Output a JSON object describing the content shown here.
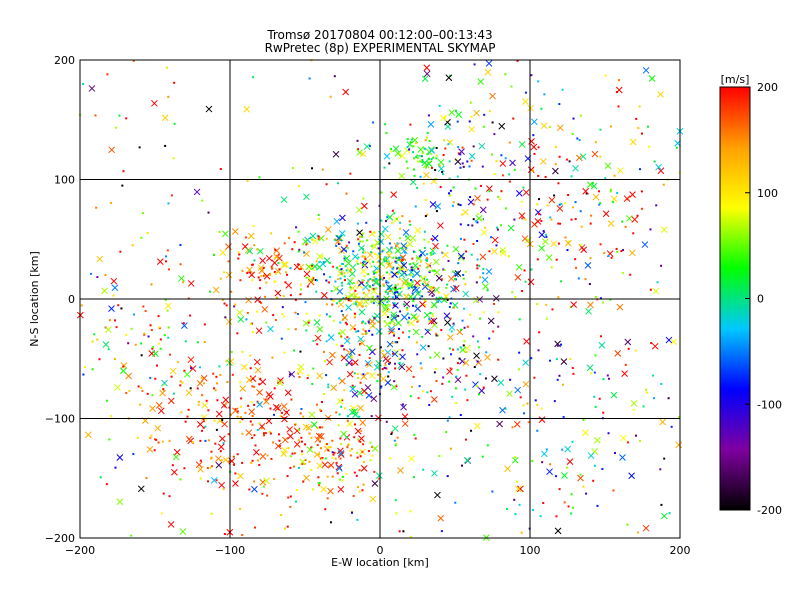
{
  "chart_data": {
    "type": "scatter",
    "title": "Tromsø 20170804 00:12:00–00:13:43",
    "subtitle": "RwPretec (8p) EXPERIMENTAL SKYMAP",
    "xlabel": "E-W location [km]",
    "ylabel": "N-S location [km]",
    "xlim": [
      -200,
      200
    ],
    "ylim": [
      -200,
      200
    ],
    "xticks": [
      -200,
      -100,
      0,
      100,
      200
    ],
    "yticks": [
      -200,
      -100,
      0,
      100,
      200
    ],
    "grid": true,
    "colorbar": {
      "label": "[m/s]",
      "range": [
        -200,
        200
      ],
      "ticks": [
        200,
        100,
        0,
        -100,
        -200
      ],
      "colormap": [
        "#000000",
        "#7f00a0",
        "#0000ff",
        "#00c8ff",
        "#00ff00",
        "#ffff00",
        "#ffa000",
        "#ff0000"
      ]
    },
    "marker_styles": [
      "dot",
      "cross"
    ],
    "clusters": [
      {
        "x": 5,
        "y": 20,
        "spread": 22,
        "count": 420,
        "velocity": 20,
        "velocity_spread": 70
      },
      {
        "x": 25,
        "y": 120,
        "spread": 10,
        "count": 60,
        "velocity": 30,
        "velocity_spread": 35
      },
      {
        "x": -80,
        "y": 25,
        "spread": 15,
        "count": 70,
        "velocity": 175,
        "velocity_spread": 45
      },
      {
        "x": -35,
        "y": 20,
        "spread": 25,
        "count": 100,
        "velocity": 90,
        "velocity_spread": 100
      },
      {
        "x": -90,
        "y": -110,
        "spread": 35,
        "count": 240,
        "velocity": 175,
        "velocity_spread": 60
      },
      {
        "x": -30,
        "y": -130,
        "spread": 20,
        "count": 120,
        "velocity": 145,
        "velocity_spread": 70
      },
      {
        "x": -20,
        "y": -50,
        "spread": 30,
        "count": 180,
        "velocity": 60,
        "velocity_spread": 130
      },
      {
        "x": 40,
        "y": -20,
        "spread": 35,
        "count": 200,
        "velocity": 10,
        "velocity_spread": 110
      },
      {
        "x": 60,
        "y": 110,
        "spread": 40,
        "count": 150,
        "velocity": 20,
        "velocity_spread": 130
      },
      {
        "x": 140,
        "y": 60,
        "spread": 45,
        "count": 150,
        "velocity": 120,
        "velocity_spread": 140
      },
      {
        "x": -150,
        "y": -30,
        "spread": 35,
        "count": 110,
        "velocity": 130,
        "velocity_spread": 120
      },
      {
        "x": 120,
        "y": -110,
        "spread": 50,
        "count": 110,
        "velocity": 40,
        "velocity_spread": 150
      },
      {
        "x": 0,
        "y": 0,
        "spread": 200,
        "count": 350,
        "velocity": 50,
        "velocity_spread": 150
      }
    ]
  }
}
